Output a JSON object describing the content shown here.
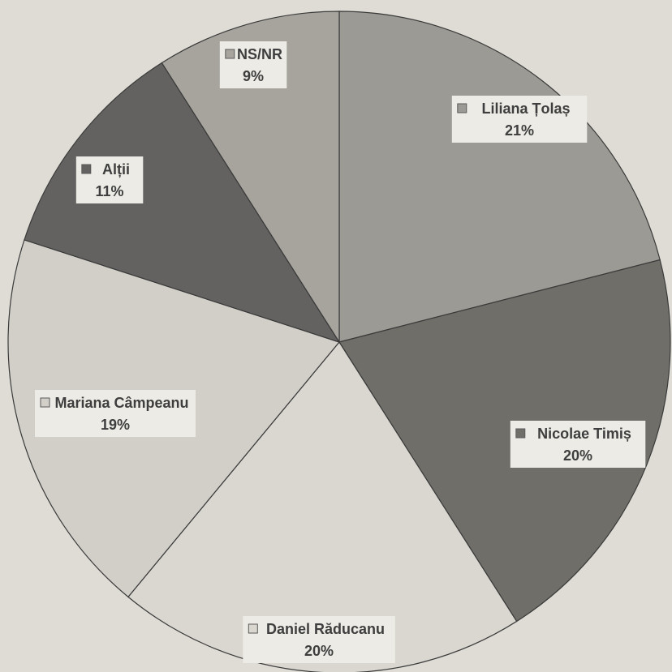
{
  "chart_data": {
    "type": "pie",
    "title": "",
    "legend": "none",
    "slices": [
      {
        "label": "Liliana Țolaș",
        "value": 21,
        "display": "21%",
        "color": "#9c9a94"
      },
      {
        "label": "Nicolae Timiș",
        "value": 20,
        "display": "20%",
        "color": "#6f6e69"
      },
      {
        "label": "Daniel Răducanu",
        "value": 20,
        "display": "20%",
        "color": "#d9d7d0"
      },
      {
        "label": "Mariana Câmpeanu",
        "value": 19,
        "display": "19%",
        "color": "#d1cfc8"
      },
      {
        "label": "Alții",
        "value": 11,
        "display": "11%",
        "color": "#636260"
      },
      {
        "label": "NS/NR",
        "value": 9,
        "display": "9%",
        "color": "#a6a49d"
      }
    ]
  }
}
